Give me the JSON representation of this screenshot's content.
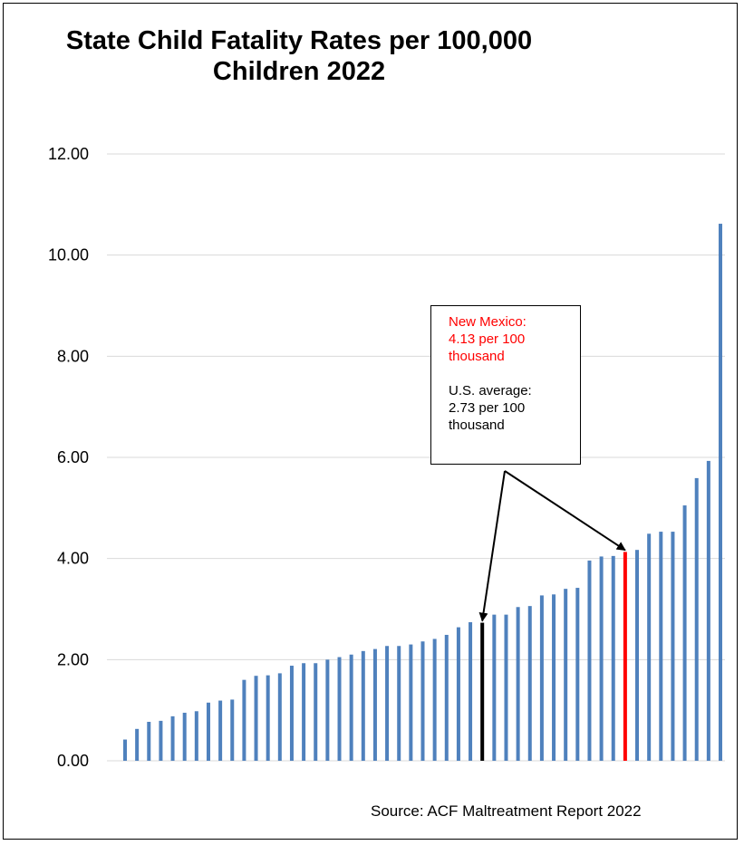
{
  "chart_data": {
    "type": "bar",
    "title": "State Child Fatality Rates per 100,000 Children 2022",
    "ylim": [
      0,
      12
    ],
    "yticks": [
      "0.00",
      "2.00",
      "4.00",
      "6.00",
      "8.00",
      "10.00",
      "12.00"
    ],
    "grid": true,
    "series_color": "#4F81BD",
    "values": [
      0.42,
      0.63,
      0.77,
      0.79,
      0.88,
      0.95,
      0.98,
      1.15,
      1.19,
      1.21,
      1.6,
      1.68,
      1.69,
      1.73,
      1.88,
      1.93,
      1.93,
      2.0,
      2.05,
      2.1,
      2.17,
      2.21,
      2.27,
      2.27,
      2.3,
      2.36,
      2.41,
      2.49,
      2.64,
      2.74,
      2.73,
      2.89,
      2.89,
      3.04,
      3.06,
      3.27,
      3.29,
      3.4,
      3.42,
      3.96,
      4.04,
      4.05,
      4.13,
      4.17,
      4.49,
      4.53,
      4.53,
      5.05,
      5.59,
      5.93,
      10.62
    ],
    "highlights": [
      {
        "index": 30,
        "color": "#000000",
        "label": "U.S. average"
      },
      {
        "index": 42,
        "color": "#ff0000",
        "label": "New Mexico"
      }
    ]
  },
  "title": {
    "line1": "State Child Fatality Rates per 100,000",
    "line2": "Children 2022"
  },
  "callout": {
    "nm_line1": "New Mexico:",
    "nm_line2": "4.13 per 100",
    "nm_line3": "thousand",
    "us_line1": "U.S. average:",
    "us_line2": "2.73 per 100",
    "us_line3": "thousand",
    "nm_color": "#ff0000"
  },
  "source": "Source:  ACF Maltreatment Report 2022"
}
